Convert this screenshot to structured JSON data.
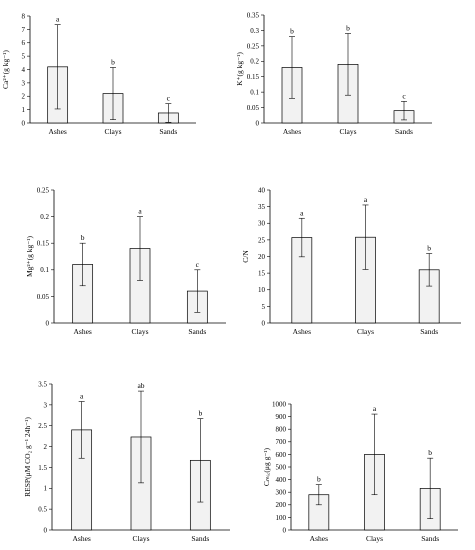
{
  "chart_data": [
    {
      "type": "bar",
      "ylabel": "Ca²⁺(g kg⁻¹)",
      "categories": [
        "Ashes",
        "Clays",
        "Sands"
      ],
      "values": [
        4.2,
        2.2,
        0.75
      ],
      "errors": [
        3.15,
        1.95,
        0.7
      ],
      "significance": [
        "a",
        "b",
        "c"
      ],
      "ylim": [
        0,
        8
      ],
      "yticks": [
        "0",
        "1",
        "2",
        "3",
        "4",
        "5",
        "6",
        "7",
        "8"
      ],
      "tick_values": [
        0,
        1,
        2,
        3,
        4,
        5,
        6,
        7,
        8
      ]
    },
    {
      "type": "bar",
      "ylabel": "K⁺(g kg⁻¹)",
      "categories": [
        "Ashes",
        "Clays",
        "Sands"
      ],
      "values": [
        0.18,
        0.19,
        0.04
      ],
      "errors": [
        0.1,
        0.1,
        0.03
      ],
      "significance": [
        "b",
        "b",
        "c"
      ],
      "ylim": [
        0,
        0.35
      ],
      "yticks": [
        "0",
        "0.05",
        "0.1",
        "0.15",
        "0.2",
        "0.25",
        "0.3",
        "0.35"
      ],
      "tick_values": [
        0,
        0.05,
        0.1,
        0.15,
        0.2,
        0.25,
        0.3,
        0.35
      ]
    },
    {
      "type": "bar",
      "ylabel": "Mg²⁺(g kg⁻¹)",
      "categories": [
        "Ashes",
        "Clays",
        "Sands"
      ],
      "values": [
        0.11,
        0.14,
        0.06
      ],
      "errors": [
        0.04,
        0.06,
        0.04
      ],
      "significance": [
        "b",
        "a",
        "c"
      ],
      "ylim": [
        0,
        0.25
      ],
      "yticks": [
        "0",
        "0.05",
        "0.1",
        "0.15",
        "0.2",
        "0.25"
      ],
      "tick_values": [
        0,
        0.05,
        0.1,
        0.15,
        0.2,
        0.25
      ]
    },
    {
      "type": "bar",
      "ylabel": "C/N",
      "categories": [
        "Ashes",
        "Clays",
        "Sands"
      ],
      "values": [
        25.7,
        25.8,
        16.0
      ],
      "errors": [
        5.8,
        9.7,
        4.9
      ],
      "significance": [
        "a",
        "a",
        "b"
      ],
      "ylim": [
        0,
        40
      ],
      "yticks": [
        "0",
        "5",
        "10",
        "15",
        "20",
        "25",
        "30",
        "35",
        "40"
      ],
      "tick_values": [
        0,
        5,
        10,
        15,
        20,
        25,
        30,
        35,
        40
      ]
    },
    {
      "type": "bar",
      "ylabel": "RESP(μM CO₂ g⁻¹ 24h⁻¹)",
      "categories": [
        "Ashes",
        "Clays",
        "Sands"
      ],
      "values": [
        2.4,
        2.23,
        1.67
      ],
      "errors": [
        0.68,
        1.1,
        1.0
      ],
      "significance": [
        "a",
        "ab",
        "b"
      ],
      "ylim": [
        0,
        3.5
      ],
      "yticks": [
        "0",
        "0.5",
        "1",
        "1.5",
        "2",
        "2.5",
        "3",
        "3.5"
      ],
      "tick_values": [
        0,
        0.5,
        1,
        1.5,
        2,
        2.5,
        3,
        3.5
      ]
    },
    {
      "type": "bar",
      "ylabel": "Cₘᵢ꜀(μg g⁻¹)",
      "categories": [
        "Ashes",
        "Clays",
        "Sands"
      ],
      "values": [
        280,
        600,
        330
      ],
      "errors": [
        80,
        320,
        240
      ],
      "significance": [
        "b",
        "a",
        "b"
      ],
      "ylim": [
        0,
        1000
      ],
      "yticks": [
        "0",
        "100",
        "200",
        "300",
        "400",
        "500",
        "600",
        "700",
        "800",
        "900",
        "1000"
      ],
      "tick_values": [
        0,
        100,
        200,
        300,
        400,
        500,
        600,
        700,
        800,
        900,
        1000
      ]
    }
  ]
}
